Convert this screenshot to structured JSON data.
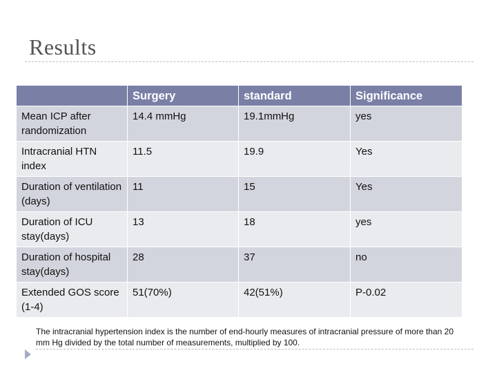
{
  "slide": {
    "title": "Results",
    "footnote": "The intracranial hypertension index is the number of end-hourly measures of intracranial pressure of more than 20 mm Hg divided by the total number of measurements, multiplied by 100."
  },
  "table": {
    "headers": [
      "",
      "Surgery",
      "standard",
      "Significance"
    ],
    "rows": [
      [
        "Mean ICP after randomization",
        "14.4 mmHg",
        "19.1mmHg",
        "yes"
      ],
      [
        "Intracranial HTN index",
        "11.5",
        "19.9",
        "Yes"
      ],
      [
        "Duration of ventilation (days)",
        "11",
        "15",
        "Yes"
      ],
      [
        "Duration of ICU stay(days)",
        "13",
        "18",
        "yes"
      ],
      [
        "Duration of hospital stay(days)",
        "28",
        "37",
        "no"
      ],
      [
        "Extended GOS score (1-4)",
        "51(70%)",
        "42(51%)",
        "P-0.02"
      ]
    ]
  },
  "colors": {
    "header_bg": "#7a7fa6",
    "row_odd": "#d3d5de",
    "row_even": "#eaebef",
    "bullet": "#a6abc6"
  }
}
